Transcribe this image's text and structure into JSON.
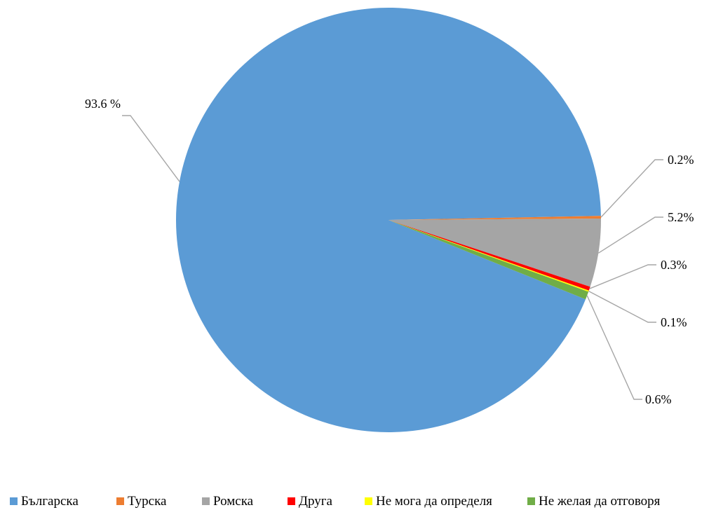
{
  "chart_data": {
    "type": "pie",
    "title": "",
    "slices": [
      {
        "name": "Българска",
        "value": 93.6,
        "label": "93.6 %",
        "color": "#5b9bd5"
      },
      {
        "name": "Турска",
        "value": 0.2,
        "label": "0.2%",
        "color": "#ed7d31"
      },
      {
        "name": "Ромска",
        "value": 5.2,
        "label": "5.2%",
        "color": "#a5a5a5"
      },
      {
        "name": "Друга",
        "value": 0.3,
        "label": "0.3%",
        "color": "#ff0000"
      },
      {
        "name": "Не мога да определя",
        "value": 0.1,
        "label": "0.1%",
        "color": "#ffff00"
      },
      {
        "name": "Не желая да отговоря",
        "value": 0.6,
        "label": "0.6%",
        "color": "#70ad47"
      }
    ],
    "legend_position": "bottom",
    "data_labels": "outside with leader lines"
  }
}
